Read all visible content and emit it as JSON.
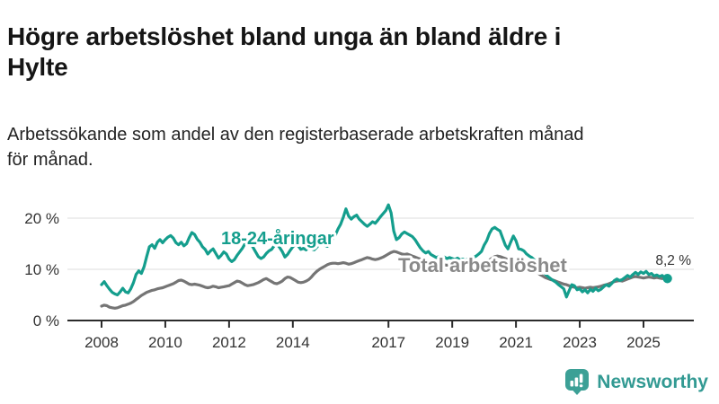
{
  "header": {
    "title": "Högre arbetslöshet bland unga än bland äldre i\nHylte",
    "subtitle": "Arbetssökande som andel av den registerbaserade arbetskraften månad\nför månad."
  },
  "chart_data": {
    "type": "line",
    "title": "Högre arbetslöshet bland unga än bland äldre i Hylte",
    "subtitle": "Arbetssökande som andel av den registerbaserade arbetskraften månad för månad.",
    "x_start_year": 2008,
    "x_step": "monthly",
    "x_end": "2025-10",
    "ylim": [
      0,
      23.5
    ],
    "grid": "horizontal",
    "legend": "inline-series-labels",
    "x_ticks": [
      {
        "value": 2008,
        "label": "2008"
      },
      {
        "value": 2010,
        "label": "2010"
      },
      {
        "value": 2012,
        "label": "2012"
      },
      {
        "value": 2014,
        "label": "2014"
      },
      {
        "value": 2017,
        "label": "2017"
      },
      {
        "value": 2019,
        "label": "2019"
      },
      {
        "value": 2021,
        "label": "2021"
      },
      {
        "value": 2023,
        "label": "2023"
      },
      {
        "value": 2025,
        "label": "2025"
      }
    ],
    "y_ticks": [
      {
        "value": 20,
        "label": "20 %"
      },
      {
        "value": 10,
        "label": "10 %"
      },
      {
        "value": 0,
        "label": "0 %"
      }
    ],
    "end_annotation": "8,2 %",
    "colors": {
      "youth": "#149e8d",
      "total": "#757575",
      "total_label": "#8a8a8a",
      "axis": "#2b2b2b",
      "grid": "#dcdcdc",
      "annotation": "#333333"
    },
    "series": [
      {
        "name": "Total arbetslöshet",
        "key": "total",
        "values": [
          2.8,
          3.0,
          2.9,
          2.6,
          2.5,
          2.4,
          2.5,
          2.7,
          2.9,
          3.0,
          3.2,
          3.4,
          3.7,
          4.1,
          4.5,
          4.9,
          5.2,
          5.5,
          5.7,
          5.9,
          6.0,
          6.2,
          6.3,
          6.4,
          6.6,
          6.8,
          7.0,
          7.2,
          7.5,
          7.8,
          7.9,
          7.7,
          7.4,
          7.1,
          7.0,
          7.1,
          7.0,
          6.9,
          6.7,
          6.5,
          6.4,
          6.5,
          6.7,
          6.6,
          6.4,
          6.5,
          6.6,
          6.7,
          6.8,
          7.1,
          7.4,
          7.7,
          7.6,
          7.3,
          7.0,
          6.8,
          6.9,
          7.0,
          7.2,
          7.4,
          7.7,
          8.0,
          8.2,
          7.9,
          7.6,
          7.3,
          7.2,
          7.4,
          7.7,
          8.2,
          8.5,
          8.4,
          8.1,
          7.8,
          7.5,
          7.4,
          7.5,
          7.7,
          8.0,
          8.5,
          9.1,
          9.6,
          10.0,
          10.3,
          10.6,
          10.9,
          11.1,
          11.2,
          11.2,
          11.1,
          11.2,
          11.3,
          11.2,
          11.0,
          11.1,
          11.3,
          11.5,
          11.7,
          11.9,
          12.1,
          12.3,
          12.2,
          12.0,
          11.9,
          12.0,
          12.2,
          12.4,
          12.7,
          13.0,
          13.3,
          13.5,
          13.4,
          13.2,
          13.0,
          12.9,
          13.0,
          12.8,
          12.6,
          12.4,
          12.2,
          12.0,
          11.8,
          11.6,
          11.5,
          11.4,
          11.3,
          11.2,
          11.1,
          11.0,
          10.9,
          10.8,
          10.8,
          10.7,
          10.6,
          10.5,
          10.4,
          10.5,
          10.4,
          10.5,
          10.6,
          10.7,
          10.8,
          10.9,
          11.0,
          11.2,
          11.4,
          11.8,
          12.2,
          12.5,
          12.6,
          12.5,
          12.3,
          12.1,
          11.9,
          11.8,
          11.7,
          11.6,
          11.4,
          11.2,
          11.0,
          10.7,
          10.4,
          10.1,
          9.8,
          9.4,
          9.0,
          8.7,
          8.4,
          8.2,
          8.0,
          7.9,
          7.7,
          7.5,
          7.3,
          7.1,
          7.0,
          6.8,
          6.6,
          6.5,
          6.4,
          6.5,
          6.4,
          6.3,
          6.4,
          6.5,
          6.4,
          6.5,
          6.6,
          6.7,
          6.9,
          7.0,
          7.2,
          7.4,
          7.6,
          7.7,
          7.8,
          7.7,
          7.9,
          8.1,
          8.3,
          8.5,
          8.6,
          8.5,
          8.4,
          8.3,
          8.4,
          8.5,
          8.4,
          8.3,
          8.4,
          8.3,
          8.2,
          8.3,
          8.3
        ]
      },
      {
        "name": "18-24-åringar",
        "key": "youth",
        "values": [
          7.0,
          7.6,
          6.8,
          6.1,
          5.5,
          5.2,
          5.0,
          5.6,
          6.3,
          5.6,
          5.4,
          6.2,
          7.4,
          9.0,
          9.7,
          9.2,
          10.5,
          12.5,
          14.4,
          14.8,
          14.1,
          15.3,
          15.8,
          15.2,
          15.8,
          16.3,
          16.6,
          16.1,
          15.2,
          14.8,
          15.3,
          14.6,
          15.0,
          16.2,
          17.2,
          16.8,
          15.9,
          15.3,
          14.4,
          13.9,
          13.0,
          13.6,
          14.0,
          13.1,
          12.2,
          12.7,
          13.4,
          13.0,
          12.0,
          11.5,
          11.9,
          12.7,
          13.4,
          14.1,
          15.0,
          15.5,
          15.2,
          14.3,
          13.4,
          12.5,
          12.1,
          12.4,
          13.1,
          13.6,
          13.9,
          14.6,
          14.9,
          14.3,
          13.5,
          12.4,
          12.9,
          13.7,
          14.4,
          14.9,
          14.6,
          13.9,
          14.1,
          13.8,
          14.4,
          14.0,
          13.8,
          14.3,
          14.9,
          15.0,
          14.7,
          14.5,
          15.2,
          16.0,
          16.7,
          17.9,
          18.8,
          20.2,
          21.8,
          20.4,
          19.8,
          20.3,
          20.6,
          19.8,
          19.3,
          18.8,
          18.4,
          18.8,
          19.3,
          19.0,
          19.6,
          20.3,
          20.9,
          21.5,
          22.6,
          21.0,
          17.5,
          15.8,
          16.2,
          16.9,
          17.3,
          17.0,
          16.7,
          16.4,
          15.8,
          15.0,
          14.2,
          13.6,
          13.2,
          13.5,
          12.9,
          12.6,
          12.3,
          12.5,
          12.2,
          12.4,
          12.1,
          12.3,
          12.1,
          11.9,
          12.2,
          11.8,
          12.0,
          11.7,
          12.1,
          11.9,
          12.3,
          12.6,
          13.0,
          13.5,
          14.7,
          15.6,
          17.0,
          17.9,
          18.2,
          17.8,
          17.5,
          16.1,
          14.7,
          14.0,
          15.3,
          16.5,
          15.6,
          14.0,
          13.9,
          13.6,
          13.0,
          12.6,
          12.3,
          11.8,
          11.2,
          10.5,
          9.8,
          9.1,
          8.6,
          8.2,
          7.8,
          7.5,
          7.0,
          6.6,
          6.2,
          4.6,
          5.8,
          7.0,
          6.8,
          6.0,
          6.2,
          5.6,
          6.0,
          5.4,
          6.1,
          5.7,
          6.3,
          5.8,
          6.1,
          6.6,
          7.0,
          6.7,
          7.2,
          7.8,
          8.1,
          7.8,
          8.0,
          8.4,
          8.8,
          8.5,
          9.0,
          9.4,
          9.0,
          9.5,
          9.2,
          9.6,
          9.0,
          9.2,
          8.7,
          8.9,
          8.6,
          8.8,
          8.4,
          8.2
        ]
      }
    ]
  },
  "footer": {
    "brand": "Newsworthy",
    "logo_color": "#3ca096"
  }
}
